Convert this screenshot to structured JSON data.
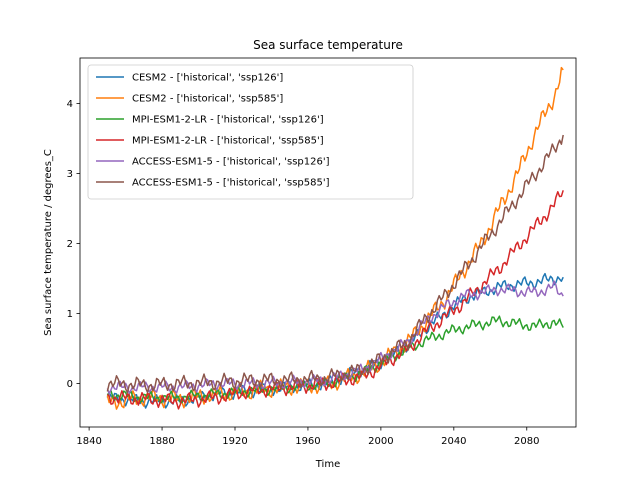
{
  "chart_data": {
    "type": "line",
    "title": "Sea surface temperature",
    "xlabel": "Time",
    "ylabel": "Sea surface temperature / degrees_C",
    "xlim": [
      1835,
      2107
    ],
    "ylim": [
      -0.62,
      4.65
    ],
    "x_ticks": [
      1840,
      1880,
      1920,
      1960,
      2000,
      2040,
      2080
    ],
    "y_ticks": [
      0,
      1,
      2,
      3,
      4
    ],
    "grid": false,
    "legend_position": "top-left",
    "series": [
      {
        "name": "CESM2 - ['historical', 'ssp126']",
        "color": "#1f77b4",
        "points": [
          [
            1850,
            -0.2
          ],
          [
            1870,
            -0.25
          ],
          [
            1890,
            -0.25
          ],
          [
            1910,
            -0.15
          ],
          [
            1930,
            -0.1
          ],
          [
            1950,
            -0.05
          ],
          [
            1970,
            0.0
          ],
          [
            1990,
            0.2
          ],
          [
            2000,
            0.3
          ],
          [
            2015,
            0.55
          ],
          [
            2025,
            0.8
          ],
          [
            2035,
            1.0
          ],
          [
            2045,
            1.2
          ],
          [
            2055,
            1.3
          ],
          [
            2065,
            1.38
          ],
          [
            2075,
            1.42
          ],
          [
            2085,
            1.45
          ],
          [
            2095,
            1.5
          ],
          [
            2100,
            1.52
          ]
        ]
      },
      {
        "name": "CESM2 - ['historical', 'ssp585']",
        "color": "#ff7f0e",
        "points": [
          [
            1850,
            -0.28
          ],
          [
            1870,
            -0.2
          ],
          [
            1890,
            -0.22
          ],
          [
            1910,
            -0.15
          ],
          [
            1930,
            -0.1
          ],
          [
            1950,
            -0.05
          ],
          [
            1970,
            -0.02
          ],
          [
            1990,
            0.15
          ],
          [
            2000,
            0.3
          ],
          [
            2015,
            0.6
          ],
          [
            2025,
            0.9
          ],
          [
            2035,
            1.2
          ],
          [
            2045,
            1.6
          ],
          [
            2055,
            2.0
          ],
          [
            2065,
            2.5
          ],
          [
            2075,
            3.0
          ],
          [
            2085,
            3.6
          ],
          [
            2095,
            4.1
          ],
          [
            2100,
            4.48
          ]
        ]
      },
      {
        "name": "MPI-ESM1-2-LR - ['historical', 'ssp126']",
        "color": "#2ca02c",
        "points": [
          [
            1850,
            -0.15
          ],
          [
            1870,
            -0.2
          ],
          [
            1890,
            -0.2
          ],
          [
            1910,
            -0.15
          ],
          [
            1930,
            -0.1
          ],
          [
            1950,
            -0.05
          ],
          [
            1970,
            0.0
          ],
          [
            1990,
            0.15
          ],
          [
            2000,
            0.3
          ],
          [
            2015,
            0.5
          ],
          [
            2025,
            0.62
          ],
          [
            2035,
            0.72
          ],
          [
            2045,
            0.8
          ],
          [
            2055,
            0.85
          ],
          [
            2065,
            0.9
          ],
          [
            2075,
            0.85
          ],
          [
            2085,
            0.82
          ],
          [
            2095,
            0.88
          ],
          [
            2100,
            0.8
          ]
        ]
      },
      {
        "name": "MPI-ESM1-2-LR - ['historical', 'ssp585']",
        "color": "#d62728",
        "points": [
          [
            1850,
            -0.2
          ],
          [
            1870,
            -0.22
          ],
          [
            1890,
            -0.25
          ],
          [
            1910,
            -0.2
          ],
          [
            1930,
            -0.1
          ],
          [
            1950,
            -0.05
          ],
          [
            1970,
            0.0
          ],
          [
            1990,
            0.1
          ],
          [
            2000,
            0.25
          ],
          [
            2015,
            0.5
          ],
          [
            2025,
            0.75
          ],
          [
            2035,
            0.95
          ],
          [
            2045,
            1.15
          ],
          [
            2055,
            1.4
          ],
          [
            2065,
            1.65
          ],
          [
            2075,
            1.95
          ],
          [
            2085,
            2.25
          ],
          [
            2095,
            2.55
          ],
          [
            2100,
            2.76
          ]
        ]
      },
      {
        "name": "ACCESS-ESM1-5 - ['historical', 'ssp126']",
        "color": "#9467bd",
        "points": [
          [
            1850,
            -0.05
          ],
          [
            1870,
            -0.05
          ],
          [
            1890,
            -0.05
          ],
          [
            1910,
            0.0
          ],
          [
            1930,
            0.0
          ],
          [
            1950,
            0.02
          ],
          [
            1970,
            0.05
          ],
          [
            1990,
            0.2
          ],
          [
            2000,
            0.35
          ],
          [
            2015,
            0.6
          ],
          [
            2025,
            0.9
          ],
          [
            2035,
            1.1
          ],
          [
            2045,
            1.25
          ],
          [
            2055,
            1.3
          ],
          [
            2065,
            1.35
          ],
          [
            2075,
            1.32
          ],
          [
            2085,
            1.3
          ],
          [
            2095,
            1.38
          ],
          [
            2100,
            1.25
          ]
        ]
      },
      {
        "name": "ACCESS-ESM1-5 - ['historical', 'ssp585']",
        "color": "#8c564b",
        "points": [
          [
            1850,
            0.0
          ],
          [
            1870,
            -0.02
          ],
          [
            1890,
            0.0
          ],
          [
            1910,
            0.02
          ],
          [
            1930,
            0.05
          ],
          [
            1950,
            0.05
          ],
          [
            1970,
            0.08
          ],
          [
            1990,
            0.2
          ],
          [
            2000,
            0.35
          ],
          [
            2015,
            0.6
          ],
          [
            2025,
            0.95
          ],
          [
            2035,
            1.25
          ],
          [
            2045,
            1.6
          ],
          [
            2055,
            1.95
          ],
          [
            2065,
            2.3
          ],
          [
            2075,
            2.65
          ],
          [
            2085,
            3.0
          ],
          [
            2095,
            3.35
          ],
          [
            2100,
            3.55
          ]
        ]
      }
    ]
  }
}
